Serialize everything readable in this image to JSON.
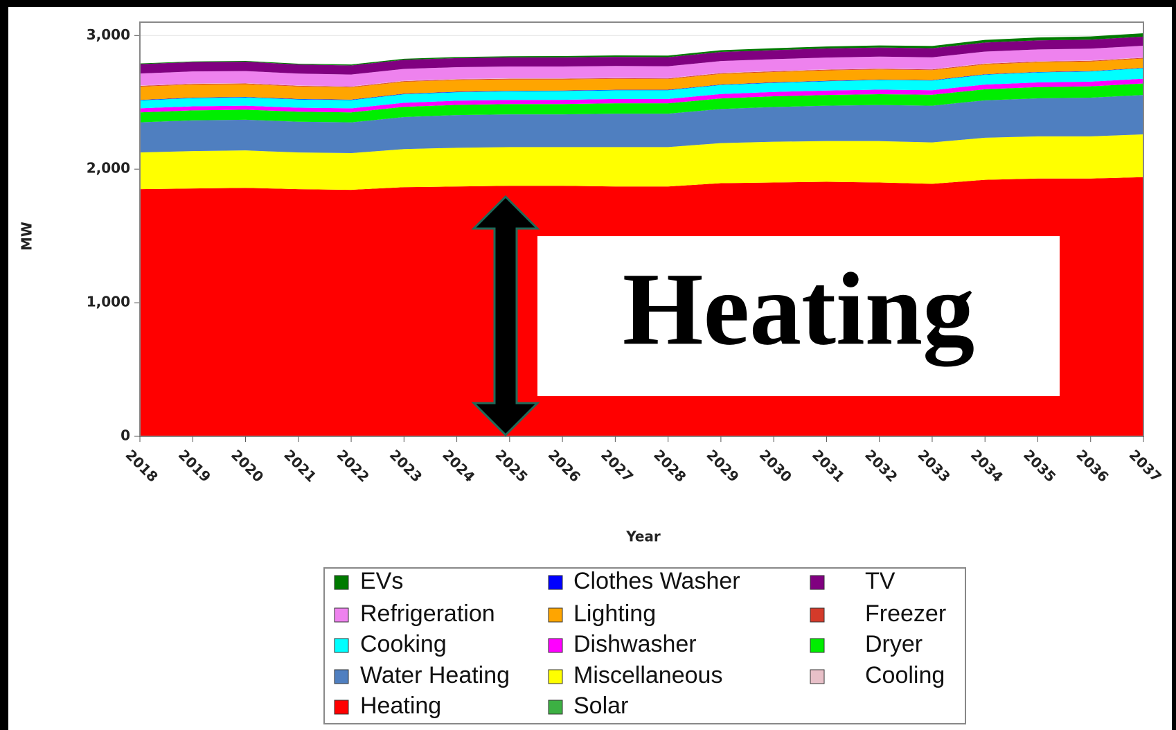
{
  "chart_data": {
    "type": "stacked_area",
    "x_label": "Year",
    "y_label": "MW",
    "annotation": "Heating",
    "x": [
      2018,
      2019,
      2020,
      2021,
      2022,
      2023,
      2024,
      2025,
      2026,
      2027,
      2028,
      2029,
      2030,
      2031,
      2032,
      2033,
      2034,
      2035,
      2036,
      2037
    ],
    "xlim": [
      2018,
      2037
    ],
    "xticks": [
      2018,
      2019,
      2020,
      2021,
      2022,
      2023,
      2024,
      2025,
      2026,
      2027,
      2028,
      2029,
      2030,
      2031,
      2032,
      2033,
      2034,
      2035,
      2036,
      2037
    ],
    "ylim": [
      0,
      3100
    ],
    "yticks": [
      0,
      {
        "value": 1000,
        "label": "1,000"
      },
      {
        "value": 2000,
        "label": "2,000"
      },
      {
        "value": 3000,
        "label": "3,000"
      }
    ],
    "grid": true,
    "series": [
      {
        "name": "EVs",
        "color": "#007a00",
        "values": [
          5,
          5,
          6,
          6,
          7,
          8,
          8,
          9,
          10,
          11,
          12,
          13,
          14,
          15,
          16,
          17,
          19,
          21,
          23,
          25
        ]
      },
      {
        "name": "Refrigeration",
        "color": "#ee82ee",
        "values": [
          90,
          90,
          90,
          88,
          88,
          88,
          88,
          88,
          88,
          88,
          88,
          88,
          88,
          88,
          88,
          88,
          88,
          88,
          88,
          88
        ]
      },
      {
        "name": "Cooking",
        "color": "#00ffff",
        "values": [
          60,
          62,
          62,
          62,
          62,
          64,
          64,
          65,
          66,
          66,
          66,
          68,
          68,
          70,
          72,
          72,
          74,
          75,
          76,
          78
        ]
      },
      {
        "name": "Water Heating",
        "color": "#4f7fc0",
        "values": [
          225,
          230,
          230,
          230,
          230,
          240,
          245,
          245,
          245,
          250,
          250,
          255,
          260,
          265,
          270,
          275,
          280,
          285,
          290,
          295
        ]
      },
      {
        "name": "Heating",
        "color": "#ff0000",
        "values": [
          1850,
          1855,
          1860,
          1850,
          1845,
          1865,
          1870,
          1875,
          1875,
          1870,
          1870,
          1895,
          1900,
          1905,
          1900,
          1890,
          1920,
          1930,
          1930,
          1940
        ]
      },
      {
        "name": "Clothes Washer",
        "color": "#0000ff",
        "values": [
          3,
          3,
          3,
          3,
          3,
          3,
          3,
          3,
          3,
          3,
          3,
          3,
          3,
          3,
          3,
          3,
          3,
          3,
          3,
          3
        ]
      },
      {
        "name": "Lighting",
        "color": "#ffa500",
        "values": [
          100,
          98,
          96,
          94,
          92,
          90,
          88,
          86,
          84,
          82,
          80,
          80,
          78,
          78,
          76,
          75,
          74,
          73,
          72,
          70
        ]
      },
      {
        "name": "Dishwasher",
        "color": "#ff00ff",
        "values": [
          30,
          30,
          30,
          30,
          30,
          31,
          31,
          31,
          32,
          32,
          32,
          33,
          33,
          33,
          34,
          34,
          35,
          35,
          35,
          36
        ]
      },
      {
        "name": "Miscellaneous",
        "color": "#ffff00",
        "values": [
          275,
          280,
          280,
          275,
          275,
          285,
          290,
          290,
          290,
          295,
          295,
          300,
          305,
          305,
          310,
          310,
          315,
          315,
          315,
          320
        ]
      },
      {
        "name": "Solar",
        "color": "#3cb043",
        "values": [
          0,
          0,
          0,
          0,
          0,
          0,
          0,
          0,
          0,
          0,
          0,
          0,
          0,
          0,
          0,
          0,
          0,
          0,
          0,
          0
        ]
      },
      {
        "name": "TV",
        "color": "#800080",
        "values": [
          70,
          70,
          70,
          68,
          68,
          68,
          68,
          68,
          68,
          68,
          68,
          68,
          68,
          68,
          68,
          68,
          68,
          68,
          68,
          68
        ]
      },
      {
        "name": "Freezer",
        "color": "#d43a2a",
        "values": [
          5,
          5,
          5,
          5,
          5,
          5,
          5,
          5,
          5,
          5,
          5,
          5,
          5,
          5,
          5,
          5,
          5,
          5,
          5,
          5
        ]
      },
      {
        "name": "Dryer",
        "color": "#00ee00",
        "values": [
          75,
          75,
          75,
          75,
          75,
          76,
          76,
          77,
          77,
          78,
          78,
          79,
          80,
          80,
          81,
          82,
          83,
          84,
          85,
          86
        ]
      },
      {
        "name": "Cooling",
        "color": "#e8c0c8",
        "values": [
          3,
          3,
          3,
          3,
          3,
          3,
          3,
          3,
          3,
          3,
          3,
          3,
          3,
          3,
          3,
          3,
          3,
          3,
          3,
          3
        ]
      }
    ]
  }
}
